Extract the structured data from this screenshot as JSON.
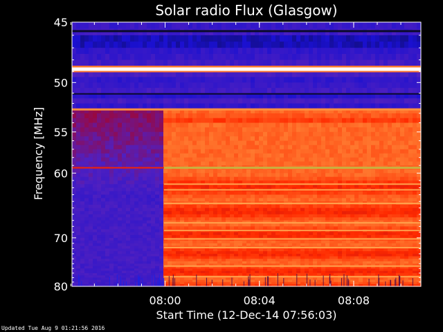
{
  "chart_data": {
    "type": "heatmap",
    "title": "Solar radio Flux (Glasgow)",
    "xlabel": "Start Time (12-Dec-14 07:56:03)",
    "ylabel": "Frequency [MHz]",
    "x_ticks": [
      "08:00",
      "08:04",
      "08:08"
    ],
    "x_tick_minutes_after_start": [
      3.95,
      7.95,
      11.95
    ],
    "x_range_minutes_after_start": [
      0,
      14.8
    ],
    "y_ticks": [
      45,
      50,
      55,
      60,
      70,
      80
    ],
    "ylim": [
      45,
      80
    ],
    "y_scale": "reciprocal",
    "colormap": [
      "#0a0a2a",
      "#1a10d0",
      "#5020c0",
      "#b00018",
      "#ff2a00",
      "#ff7a30",
      "#ffd070",
      "#ffffff"
    ],
    "events": [
      {
        "description": "persistent strong emission line",
        "frequency_mhz": 48.8
      },
      {
        "description": "emission onset across band",
        "minutes_after_start": 3.9
      },
      {
        "description": "bright line after onset",
        "frequency_mhz": 59.3
      }
    ]
  },
  "footer": "Updated Tue Aug  9 01:21:56 2016"
}
